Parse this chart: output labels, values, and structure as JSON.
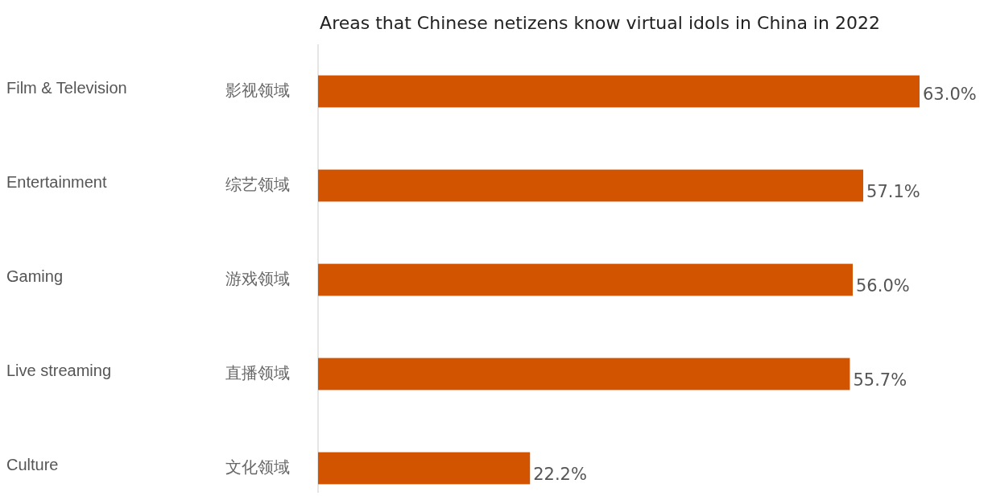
{
  "chart_data": {
    "type": "bar",
    "orientation": "horizontal",
    "title": "Areas that Chinese netizens know virtual idols in China in 2022",
    "categories": [
      "影视领域",
      "综艺领域",
      "游戏领域",
      "直播领域",
      "文化领域"
    ],
    "values": [
      63.0,
      57.1,
      56.0,
      55.7,
      22.2
    ],
    "value_labels": [
      "63.0%",
      "57.1%",
      "56.0%",
      "55.7%",
      "22.2%"
    ],
    "color": "#d35400",
    "annotations": [
      "Film & Television",
      "Entertainment",
      "Gaming",
      "Live streaming",
      "Culture"
    ]
  }
}
